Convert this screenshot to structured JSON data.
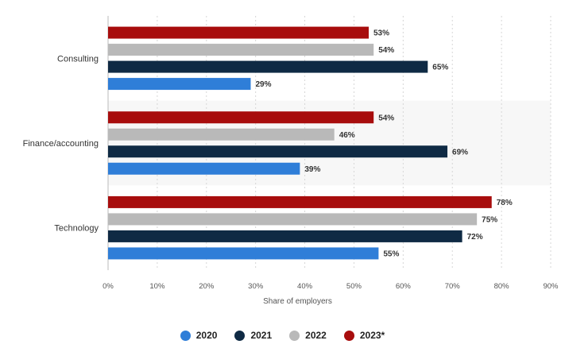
{
  "chart_data": {
    "type": "bar",
    "orientation": "horizontal",
    "categories": [
      "Consulting",
      "Finance/accounting",
      "Technology"
    ],
    "series": [
      {
        "name": "2023*",
        "color": "#a80d0d",
        "values": [
          53,
          54,
          78
        ]
      },
      {
        "name": "2022",
        "color": "#b9b9b9",
        "values": [
          54,
          46,
          75
        ]
      },
      {
        "name": "2021",
        "color": "#0f2a44",
        "values": [
          65,
          69,
          72
        ]
      },
      {
        "name": "2020",
        "color": "#2f7ed8",
        "values": [
          29,
          39,
          55
        ]
      }
    ],
    "value_suffix": "%",
    "xlabel": "Share of employers",
    "ylabel": "",
    "xlim": [
      0,
      90
    ],
    "xticks": [
      "0%",
      "10%",
      "20%",
      "30%",
      "40%",
      "50%",
      "60%",
      "70%",
      "80%",
      "90%"
    ],
    "grid": "vertical-dotted",
    "legend_position": "bottom",
    "legend": [
      {
        "label": "2020",
        "color": "#2f7ed8"
      },
      {
        "label": "2021",
        "color": "#0f2a44"
      },
      {
        "label": "2022",
        "color": "#b9b9b9"
      },
      {
        "label": "2023*",
        "color": "#a80d0d"
      }
    ]
  }
}
